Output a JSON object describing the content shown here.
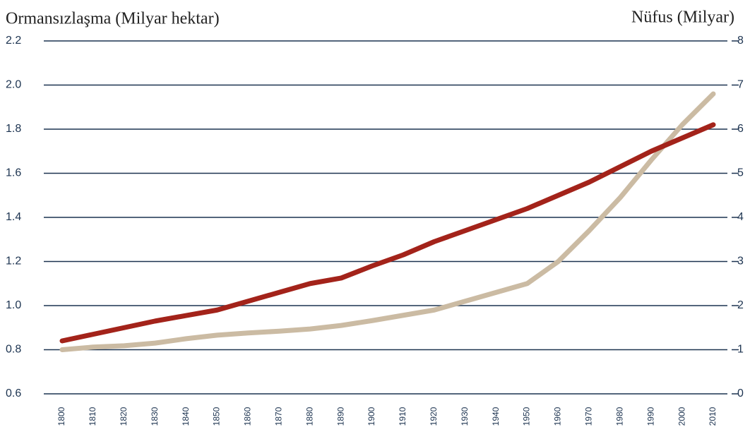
{
  "chart_data": {
    "type": "line",
    "y_label": "Ormansızlaşma (Milyar hektar)",
    "y2_label": "Nüfus (Milyar)",
    "x": [
      1800,
      1810,
      1820,
      1830,
      1840,
      1850,
      1860,
      1870,
      1880,
      1890,
      1900,
      1910,
      1920,
      1930,
      1940,
      1950,
      1960,
      1970,
      1980,
      1990,
      2000,
      2010
    ],
    "xlim": [
      1800,
      2010
    ],
    "ylim": [
      0.6,
      2.2
    ],
    "yticks": [
      {
        "value": 0.6,
        "label": "0.6"
      },
      {
        "value": 0.8,
        "label": "0.8"
      },
      {
        "value": 1.0,
        "label": "1.0"
      },
      {
        "value": 1.2,
        "label": "1.2"
      },
      {
        "value": 1.4,
        "label": "1.4"
      },
      {
        "value": 1.6,
        "label": "1.6"
      },
      {
        "value": 1.8,
        "label": "1.8"
      },
      {
        "value": 2.0,
        "label": "2.0"
      },
      {
        "value": 2.2,
        "label": "2.2"
      }
    ],
    "y2lim": [
      0,
      8
    ],
    "y2ticks": [
      0,
      1,
      2,
      3,
      4,
      5,
      6,
      7,
      8
    ],
    "grid": true,
    "series": [
      {
        "color": "#a3231a",
        "values": [
          0.84,
          0.87,
          0.9,
          0.93,
          0.955,
          0.98,
          1.02,
          1.06,
          1.1,
          1.125,
          1.18,
          1.23,
          1.29,
          1.34,
          1.39,
          1.44,
          1.5,
          1.56,
          1.63,
          1.7,
          1.76,
          1.82
        ]
      },
      {
        "color": "#cbbba3",
        "axis": "y2",
        "values": [
          1.0,
          1.06,
          1.09,
          1.15,
          1.25,
          1.33,
          1.38,
          1.42,
          1.47,
          1.55,
          1.66,
          1.78,
          1.9,
          2.1,
          2.3,
          2.5,
          3.0,
          3.7,
          4.45,
          5.3,
          6.1,
          6.8
        ]
      }
    ]
  }
}
